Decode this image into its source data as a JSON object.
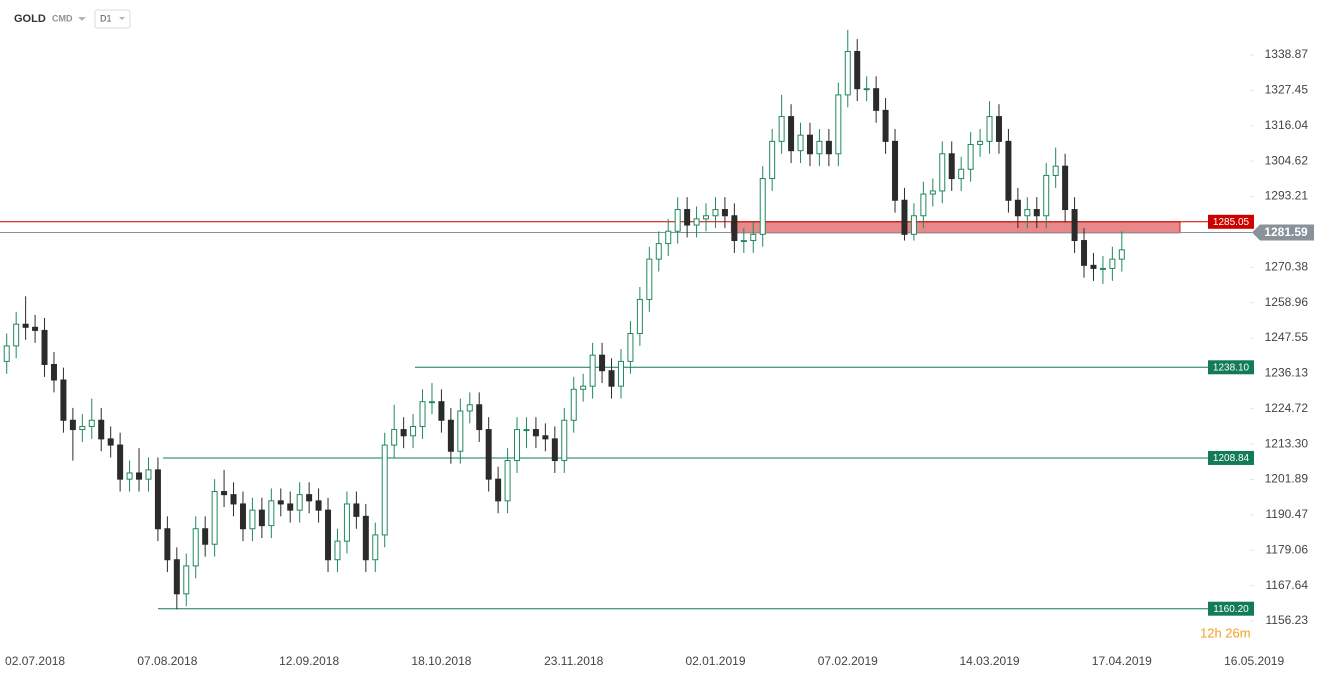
{
  "header": {
    "symbol": "GOLD",
    "market": "CMD",
    "interval": "D1"
  },
  "chart_data": {
    "type": "candlestick",
    "categories": [
      null,
      null,
      null,
      "02.07.2018",
      null,
      null,
      null,
      null,
      null,
      null,
      null,
      null,
      null,
      null,
      null,
      null,
      null,
      "07.08.2018",
      null,
      null,
      null,
      null,
      null,
      null,
      null,
      null,
      null,
      null,
      null,
      null,
      null,
      null,
      "12.09.2018",
      null,
      null,
      null,
      null,
      null,
      null,
      null,
      null,
      null,
      null,
      null,
      null,
      null,
      "18.10.2018",
      null,
      null,
      null,
      null,
      null,
      null,
      null,
      null,
      null,
      null,
      null,
      null,
      null,
      "23.11.2018",
      null,
      null,
      null,
      null,
      null,
      null,
      null,
      null,
      null,
      null,
      null,
      null,
      null,
      null,
      "02.01.2019",
      null,
      null,
      null,
      null,
      null,
      null,
      null,
      null,
      null,
      null,
      null,
      null,
      null,
      "07.02.2019",
      null,
      null,
      null,
      null,
      null,
      null,
      null,
      null,
      null,
      null,
      null,
      null,
      null,
      null,
      "14.03.2019",
      null,
      null,
      null,
      null,
      null,
      null,
      null,
      null,
      null,
      null,
      null,
      null,
      null,
      "17.04.2019",
      null,
      null,
      null,
      null,
      null,
      null,
      null,
      null,
      null,
      null,
      null,
      null,
      null,
      "16.05.2019"
    ],
    "open": [
      1240,
      1245,
      1252,
      1251,
      1250,
      1239,
      1234,
      1221,
      1218,
      1219,
      1221,
      1215,
      1213,
      1202,
      1204,
      1202,
      1205,
      1186,
      1176,
      1165,
      1174,
      1186,
      1181,
      1198,
      1197,
      1194,
      1186,
      1192,
      1187,
      1195,
      1194,
      1192,
      1197,
      1195,
      1192,
      1176,
      1182,
      1194,
      1190,
      1176,
      1184,
      1213,
      1218,
      1216,
      1219,
      1227,
      1227,
      1221,
      1211,
      1224,
      1226,
      1218,
      1202,
      1195,
      1208,
      1218,
      1218,
      1216,
      1215,
      1208,
      1221,
      1231,
      1232,
      1242,
      1237,
      1232,
      1240,
      1249,
      1260,
      1273,
      1278,
      1282,
      1289,
      1284,
      1286,
      1287,
      1289,
      1287,
      1279,
      1279,
      1281,
      1299,
      1311,
      1319,
      1308,
      1313,
      1307,
      1311,
      1307,
      1326,
      1340,
      1328,
      1328,
      1321,
      1311,
      1292,
      1281,
      1287,
      1294,
      1295,
      1307,
      1299,
      1302,
      1310,
      1311,
      1319,
      1311,
      1292,
      1287,
      1289,
      1287,
      1300,
      1303,
      1289,
      1279,
      1271,
      1270,
      1270,
      1273,
      null,
      null,
      null,
      null,
      null,
      null,
      null,
      null,
      null,
      null,
      null,
      null,
      null,
      null
    ],
    "high": [
      1249,
      1256,
      1261,
      1255,
      1254,
      1243,
      1238,
      1225,
      1223,
      1228,
      1225,
      1219,
      1217,
      1208,
      1212,
      1209,
      1209,
      1190,
      1180,
      1178,
      1190,
      1190,
      1202,
      1205,
      1201,
      1198,
      1196,
      1196,
      1199,
      1199,
      1198,
      1201,
      1201,
      1199,
      1196,
      1186,
      1198,
      1198,
      1194,
      1188,
      1217,
      1226,
      1222,
      1223,
      1231,
      1233,
      1231,
      1225,
      1228,
      1230,
      1230,
      1222,
      1206,
      1212,
      1222,
      1222,
      1222,
      1220,
      1219,
      1225,
      1235,
      1236,
      1246,
      1246,
      1241,
      1244,
      1253,
      1264,
      1277,
      1282,
      1286,
      1293,
      1293,
      1290,
      1291,
      1293,
      1293,
      1291,
      1283,
      1285,
      1303,
      1315,
      1326,
      1323,
      1317,
      1317,
      1315,
      1315,
      1330,
      1347,
      1344,
      1332,
      1332,
      1325,
      1315,
      1296,
      1291,
      1298,
      1299,
      1311,
      1311,
      1306,
      1314,
      1315,
      1324,
      1323,
      1315,
      1296,
      1293,
      1293,
      1304,
      1309,
      1307,
      1293,
      1283,
      1275,
      1274,
      1277,
      1282,
      null,
      null,
      null,
      null,
      null,
      null,
      null,
      null,
      null,
      null,
      null,
      null,
      null,
      null
    ],
    "low": [
      1236,
      1241,
      1247,
      1246,
      1235,
      1230,
      1217,
      1208,
      1214,
      1215,
      1211,
      1209,
      1198,
      1198,
      1198,
      1198,
      1182,
      1172,
      1160,
      1161,
      1170,
      1177,
      1177,
      1193,
      1190,
      1182,
      1182,
      1183,
      1183,
      1190,
      1188,
      1188,
      1191,
      1188,
      1172,
      1172,
      1178,
      1186,
      1172,
      1172,
      1180,
      1209,
      1212,
      1212,
      1215,
      1223,
      1217,
      1207,
      1207,
      1220,
      1214,
      1198,
      1191,
      1191,
      1204,
      1212,
      1212,
      1211,
      1204,
      1204,
      1217,
      1227,
      1228,
      1233,
      1228,
      1228,
      1236,
      1245,
      1256,
      1269,
      1274,
      1278,
      1280,
      1280,
      1282,
      1283,
      1283,
      1275,
      1275,
      1275,
      1277,
      1295,
      1307,
      1304,
      1304,
      1303,
      1303,
      1303,
      1303,
      1322,
      1324,
      1324,
      1317,
      1307,
      1288,
      1279,
      1279,
      1283,
      1290,
      1291,
      1295,
      1295,
      1298,
      1306,
      1307,
      1307,
      1288,
      1283,
      1283,
      1283,
      1283,
      1296,
      1285,
      1275,
      1267,
      1266,
      1265,
      1266,
      1269,
      null,
      null,
      null,
      null,
      null,
      null,
      null,
      null,
      null,
      null,
      null,
      null,
      null,
      null
    ],
    "close": [
      1245,
      1252,
      1251,
      1250,
      1239,
      1234,
      1221,
      1218,
      1219,
      1221,
      1215,
      1213,
      1202,
      1204,
      1202,
      1205,
      1186,
      1176,
      1165,
      1174,
      1186,
      1181,
      1198,
      1197,
      1194,
      1186,
      1192,
      1187,
      1195,
      1194,
      1192,
      1197,
      1195,
      1192,
      1176,
      1182,
      1194,
      1190,
      1176,
      1184,
      1213,
      1218,
      1216,
      1219,
      1227,
      1227,
      1221,
      1211,
      1224,
      1226,
      1218,
      1202,
      1195,
      1208,
      1218,
      1218,
      1216,
      1215,
      1208,
      1221,
      1231,
      1232,
      1242,
      1237,
      1232,
      1240,
      1249,
      1260,
      1273,
      1278,
      1282,
      1289,
      1284,
      1286,
      1287,
      1289,
      1287,
      1279,
      1279,
      1281,
      1299,
      1311,
      1319,
      1308,
      1313,
      1307,
      1311,
      1307,
      1326,
      1340,
      1328,
      1328,
      1321,
      1311,
      1292,
      1281,
      1287,
      1294,
      1295,
      1307,
      1299,
      1302,
      1310,
      1311,
      1319,
      1311,
      1292,
      1287,
      1289,
      1287,
      1300,
      1303,
      1289,
      1279,
      1271,
      1270,
      1270,
      1273,
      1276,
      null,
      null,
      null,
      null,
      null,
      null,
      null,
      null,
      null,
      null,
      null,
      null,
      null,
      null
    ],
    "up_color": "#1f8a5b",
    "down_color": "#2b2b2b",
    "ylim": [
      1146.87,
      1356.62
    ],
    "yticks": [
      1156.23,
      1167.64,
      1179.06,
      1190.47,
      1201.89,
      {
        "value": 1213.3,
        "label": "1213.30"
      },
      1224.72,
      1236.13,
      1247.55,
      1258.96,
      1270.38,
      1293.21,
      1304.62,
      1316.04,
      1327.45,
      1338.87
    ],
    "zone": {
      "low": 1281.5,
      "high": 1285.05,
      "color": "#e57373"
    },
    "levels": [
      {
        "value": 1285.05,
        "color": "#cc0000"
      },
      {
        "value": {
          "value": 1238.1,
          "label": "1238.10"
        },
        "color": "#137a5a"
      },
      {
        "value": 1208.84,
        "color": "#137a5a"
      },
      {
        "value": {
          "value": 1160.2,
          "label": "1160.20"
        },
        "color": "#137a5a"
      }
    ],
    "current_price": {
      "value": 1281.59,
      "color": "#8a9299"
    },
    "countdown": "12h 26m"
  }
}
